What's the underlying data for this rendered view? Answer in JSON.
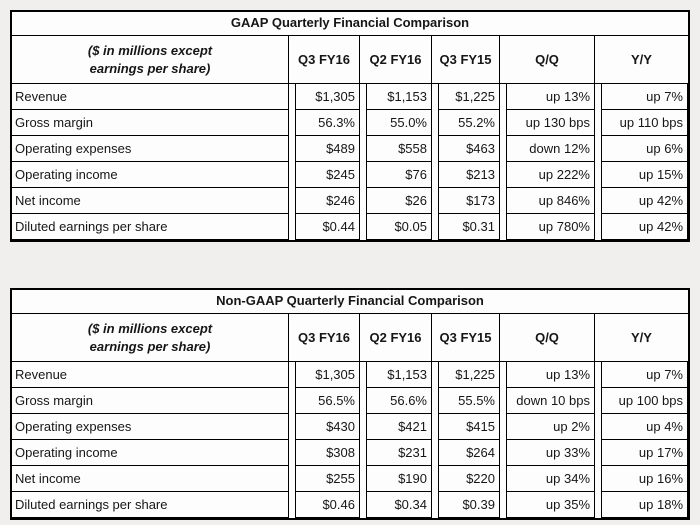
{
  "page": {
    "background": "#f0efed",
    "table_background": "#fdfdfd",
    "border_color": "#000000",
    "text_color": "#161616"
  },
  "tables": [
    {
      "title": "GAAP Quarterly Financial Comparison",
      "corner_label_line1": "($ in millions except",
      "corner_label_line2": "earnings per share)",
      "columns": [
        "Q3 FY16",
        "Q2 FY16",
        "Q3 FY15",
        "Q/Q",
        "Y/Y"
      ],
      "rows": [
        {
          "label": "Revenue",
          "values": [
            "$1,305",
            "$1,153",
            "$1,225",
            "up 13%",
            "up 7%"
          ]
        },
        {
          "label": "Gross margin",
          "values": [
            "56.3%",
            "55.0%",
            "55.2%",
            "up 130 bps",
            "up 110 bps"
          ]
        },
        {
          "label": "Operating expenses",
          "values": [
            "$489",
            "$558",
            "$463",
            "down 12%",
            "up 6%"
          ]
        },
        {
          "label": "Operating income",
          "values": [
            "$245",
            "$76",
            "$213",
            "up 222%",
            "up 15%"
          ]
        },
        {
          "label": "Net income",
          "values": [
            "$246",
            "$26",
            "$173",
            "up 846%",
            "up 42%"
          ]
        },
        {
          "label": "Diluted earnings per share",
          "values": [
            "$0.44",
            "$0.05",
            "$0.31",
            "up 780%",
            "up 42%"
          ]
        }
      ]
    },
    {
      "title": "Non-GAAP Quarterly Financial Comparison",
      "corner_label_line1": "($ in millions except",
      "corner_label_line2": "earnings per share)",
      "columns": [
        "Q3 FY16",
        "Q2 FY16",
        "Q3 FY15",
        "Q/Q",
        "Y/Y"
      ],
      "rows": [
        {
          "label": "Revenue",
          "values": [
            "$1,305",
            "$1,153",
            "$1,225",
            "up 13%",
            "up 7%"
          ]
        },
        {
          "label": "Gross margin",
          "values": [
            "56.5%",
            "56.6%",
            "55.5%",
            "down 10 bps",
            "up 100 bps"
          ]
        },
        {
          "label": "Operating expenses",
          "values": [
            "$430",
            "$421",
            "$415",
            "up 2%",
            "up 4%"
          ]
        },
        {
          "label": "Operating income",
          "values": [
            "$308",
            "$231",
            "$264",
            "up 33%",
            "up 17%"
          ]
        },
        {
          "label": "Net income",
          "values": [
            "$255",
            "$190",
            "$220",
            "up 34%",
            "up 16%"
          ]
        },
        {
          "label": "Diluted earnings per share",
          "values": [
            "$0.46",
            "$0.34",
            "$0.39",
            "up 35%",
            "up 18%"
          ]
        }
      ]
    }
  ]
}
